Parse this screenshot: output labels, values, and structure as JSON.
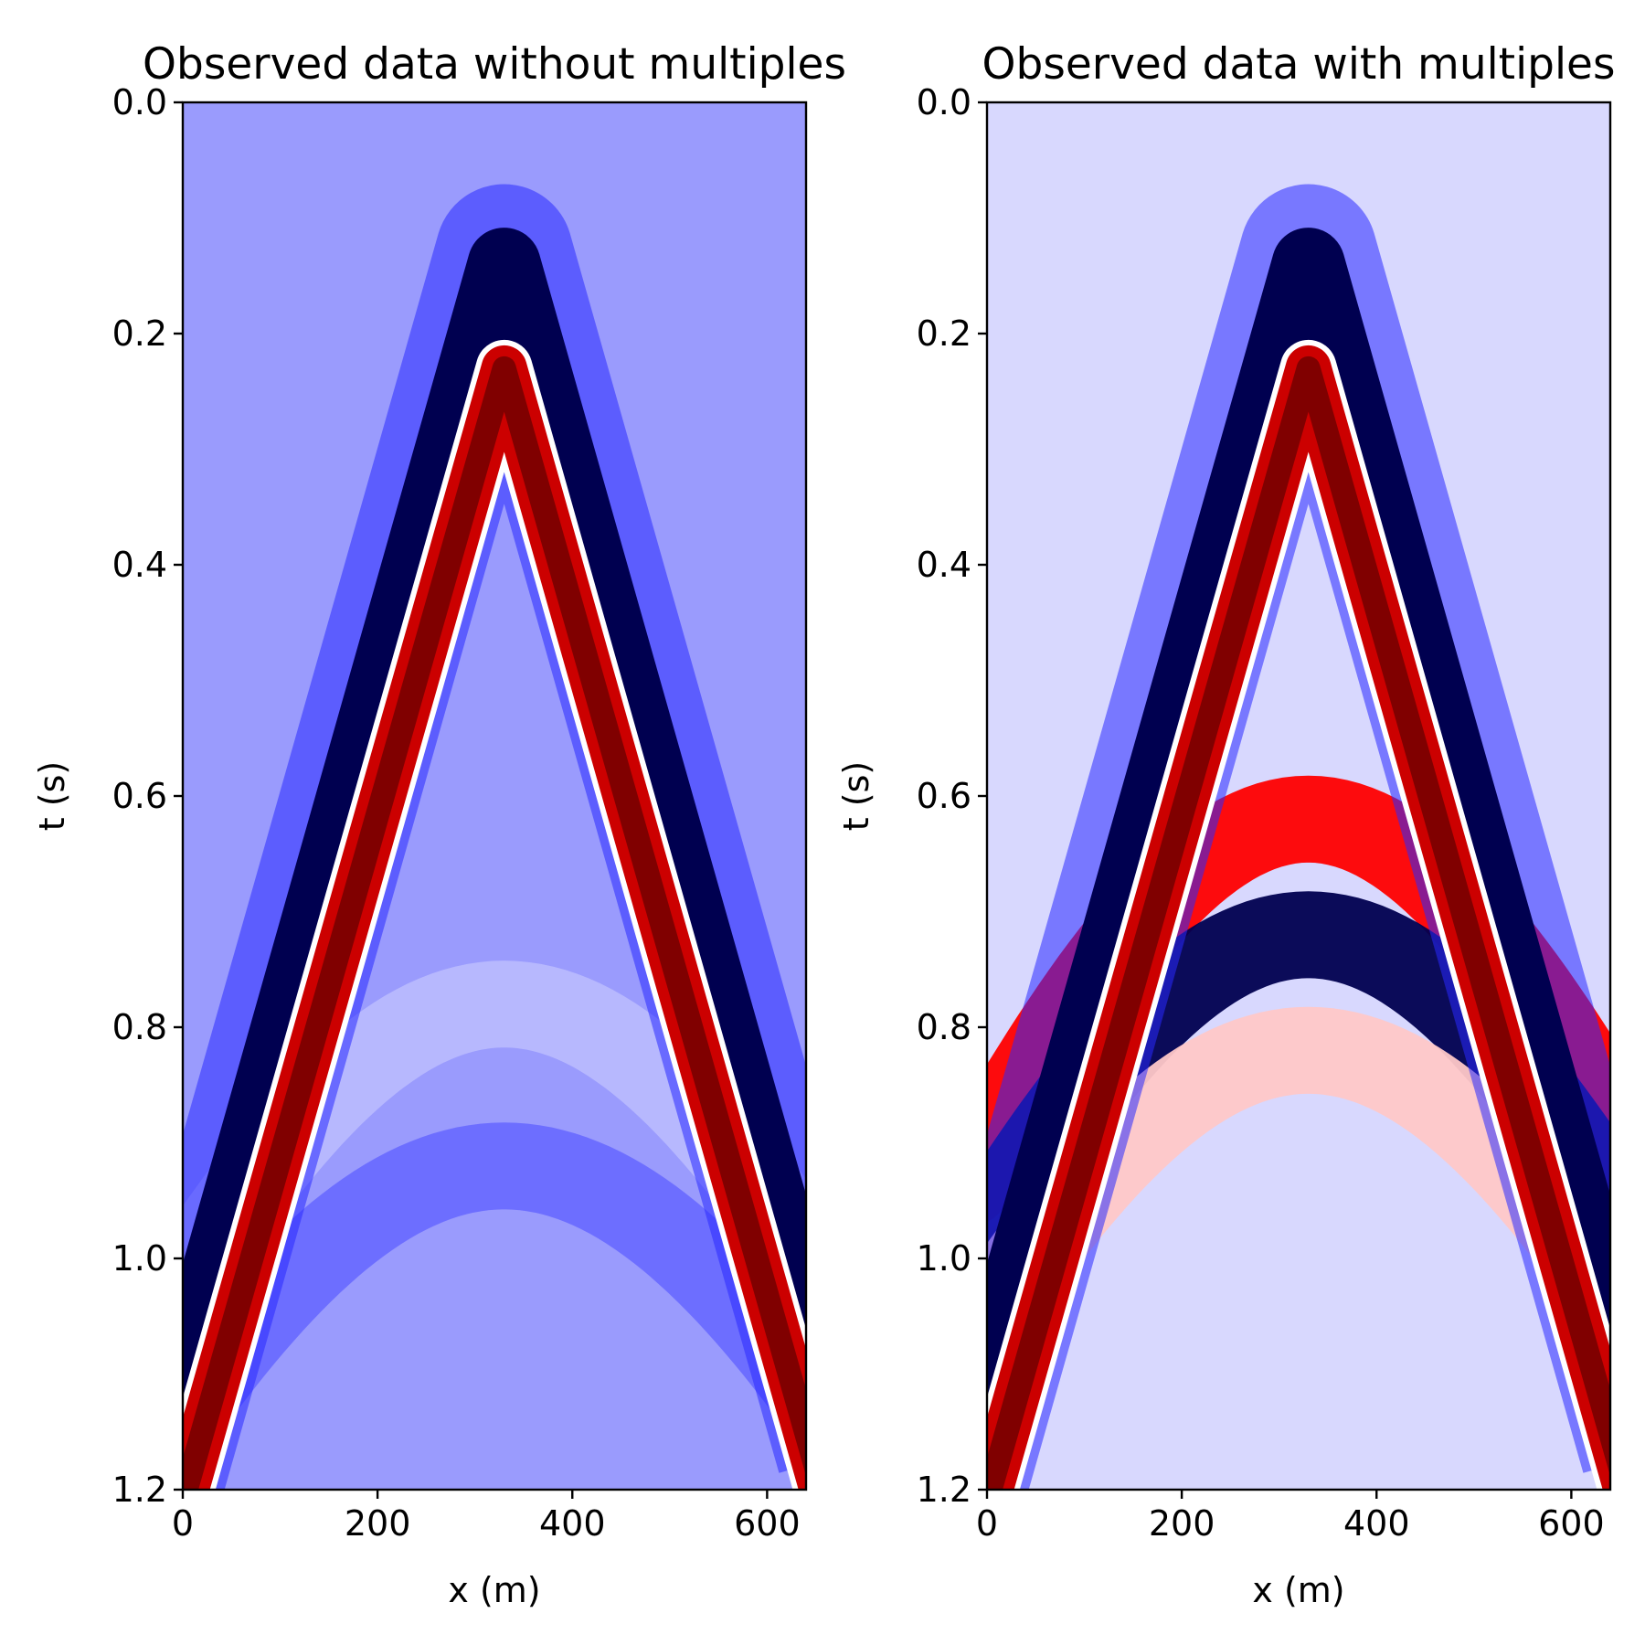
{
  "chart_data": [
    {
      "type": "heatmap",
      "title": "Observed data without multiples",
      "xlabel": "x (m)",
      "ylabel": "t (s)",
      "xlim": [
        0,
        640
      ],
      "ylim": [
        1.2,
        0.0
      ],
      "y_inverted": true,
      "xticks": [
        0,
        200,
        400,
        600
      ],
      "xtick_labels": [
        "0",
        "200",
        "400",
        "600"
      ],
      "yticks": [
        0.0,
        0.2,
        0.4,
        0.6,
        0.8,
        1.0,
        1.2
      ],
      "ytick_labels": [
        "0.0",
        "0.2",
        "0.4",
        "0.6",
        "0.8",
        "1.0",
        "1.2"
      ],
      "colormap": "seismic",
      "background_color": "#9a9bfd",
      "source_x": 330,
      "events": [
        {
          "kind": "direct-wave",
          "apex_t": 0.12,
          "t_at_x0": 1.1,
          "color": "#000050"
        },
        {
          "kind": "reflection",
          "apex_t": 0.78,
          "color": "#b8b9fe"
        },
        {
          "kind": "reflection",
          "apex_t": 0.92,
          "color": "#6a6bff"
        }
      ],
      "grid": false,
      "legend": false
    },
    {
      "type": "heatmap",
      "title": "Observed data with multiples",
      "xlabel": "x (m)",
      "ylabel": "t (s)",
      "xlim": [
        0,
        640
      ],
      "ylim": [
        1.2,
        0.0
      ],
      "y_inverted": true,
      "xticks": [
        0,
        200,
        400,
        600
      ],
      "xtick_labels": [
        "0",
        "200",
        "400",
        "600"
      ],
      "yticks": [
        0.0,
        0.2,
        0.4,
        0.6,
        0.8,
        1.0,
        1.2
      ],
      "ytick_labels": [
        "0.0",
        "0.2",
        "0.4",
        "0.6",
        "0.8",
        "1.0",
        "1.2"
      ],
      "colormap": "seismic",
      "background_color": "#d8d8fe",
      "source_x": 330,
      "events": [
        {
          "kind": "direct-wave",
          "apex_t": 0.12,
          "t_at_x0": 1.1,
          "color": "#000050"
        },
        {
          "kind": "multiple",
          "apex_t": 0.62,
          "color": "#ff0000"
        },
        {
          "kind": "multiple",
          "apex_t": 0.72,
          "color": "#000050"
        },
        {
          "kind": "multiple",
          "apex_t": 0.82,
          "color": "#ffc8c8"
        }
      ],
      "grid": false,
      "legend": false
    }
  ]
}
